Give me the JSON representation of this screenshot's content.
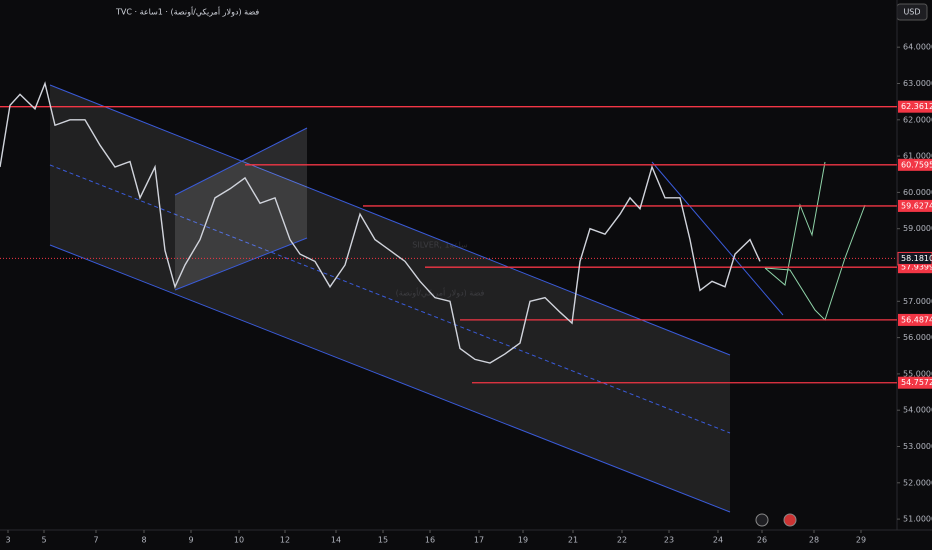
{
  "header": {
    "symbol_line": "فضة (دولار أمريكي/أونصة) · 1ساعة · TVC",
    "currency": "USD"
  },
  "chart_data": {
    "type": "line",
    "watermark": "SILVER, 1ساعة",
    "watermark_subtitle": "فضة (دولار أمريكي/أونصة)",
    "series": [
      {
        "color": "#d1d4dc",
        "x": [
          0,
          5,
          10,
          17.5,
          22.5,
          27.5,
          35,
          42.5,
          50,
          57.5,
          65,
          70,
          77.5,
          82.5,
          87.5,
          92.5,
          100,
          107.5,
          115,
          122.5,
          130,
          137.5,
          145,
          150,
          157.5,
          165,
          172.5,
          180,
          187.5,
          195,
          202.5,
          210,
          217.5,
          225,
          230,
          237.5,
          245,
          252.5,
          260,
          265,
          272.5,
          280,
          286,
          290,
          295,
          302.5,
          310,
          315,
          320,
          326,
          332.5,
          340,
          345,
          350,
          356,
          362.5,
          367.5,
          375,
          380
        ],
        "values": [
          60.7,
          62.4,
          62.7,
          62.3,
          63.0,
          61.85,
          62.0,
          62.0,
          61.3,
          60.7,
          60.85,
          59.85,
          60.7,
          58.4,
          57.4,
          58.0,
          58.7,
          59.85,
          60.1,
          60.4,
          59.7,
          59.85,
          58.7,
          58.3,
          58.1,
          57.4,
          58.0,
          59.4,
          58.7,
          58.4,
          58.1,
          57.55,
          57.1,
          57.0,
          55.7,
          55.4,
          55.3,
          55.55,
          55.85,
          57.0,
          57.1,
          56.7,
          56.4,
          58.1,
          59.0,
          58.85,
          59.4,
          59.85,
          59.55,
          60.7,
          59.85,
          59.85,
          58.7,
          57.3,
          57.55,
          57.4,
          58.3,
          58.7,
          58.1
        ]
      }
    ],
    "levels": [
      62.3612,
      60.7595,
      59.6274,
      57.9399,
      56.4874,
      54.7572
    ],
    "current_price": {
      "value": 58.181,
      "label": "58.1810"
    },
    "ylim": [
      50.7,
      65.3
    ],
    "yticks": [
      {
        "value": 64,
        "label": "64.0000"
      },
      {
        "value": 63,
        "label": "63.0000"
      },
      {
        "value": 62,
        "label": "62.0000"
      },
      {
        "value": 61,
        "label": "61.0000"
      },
      {
        "value": 60,
        "label": "60.0000"
      },
      {
        "value": 59,
        "label": "59.0000"
      },
      {
        "value": 58,
        "label": "58.0000"
      },
      {
        "value": 57,
        "label": "57.0000"
      },
      {
        "value": 56,
        "label": "56.0000"
      },
      {
        "value": 55,
        "label": "55.0000"
      },
      {
        "value": 54,
        "label": "54.0000"
      },
      {
        "value": 53,
        "label": "53.0000"
      },
      {
        "value": 52,
        "label": "52.0000"
      },
      {
        "value": 51,
        "label": "51.0000"
      }
    ],
    "xlim": [
      0,
      449
    ],
    "xticks": [
      {
        "value": 4,
        "label": "3"
      },
      {
        "value": 22,
        "label": "5"
      },
      {
        "value": 48,
        "label": "7"
      },
      {
        "value": 72,
        "label": "8"
      },
      {
        "value": 95.5,
        "label": "9"
      },
      {
        "value": 119.5,
        "label": "10"
      },
      {
        "value": 142.5,
        "label": "12"
      },
      {
        "value": 168,
        "label": "14"
      },
      {
        "value": 191.5,
        "label": "15"
      },
      {
        "value": 215,
        "label": "16"
      },
      {
        "value": 239.5,
        "label": "17"
      },
      {
        "value": 261.5,
        "label": "19"
      },
      {
        "value": 286.5,
        "label": "21"
      },
      {
        "value": 311,
        "label": "22"
      },
      {
        "value": 334.5,
        "label": "23"
      },
      {
        "value": 359,
        "label": "24"
      },
      {
        "value": 381,
        "label": "26"
      },
      {
        "value": 407,
        "label": "28"
      },
      {
        "value": 430.5,
        "label": "29"
      }
    ]
  }
}
